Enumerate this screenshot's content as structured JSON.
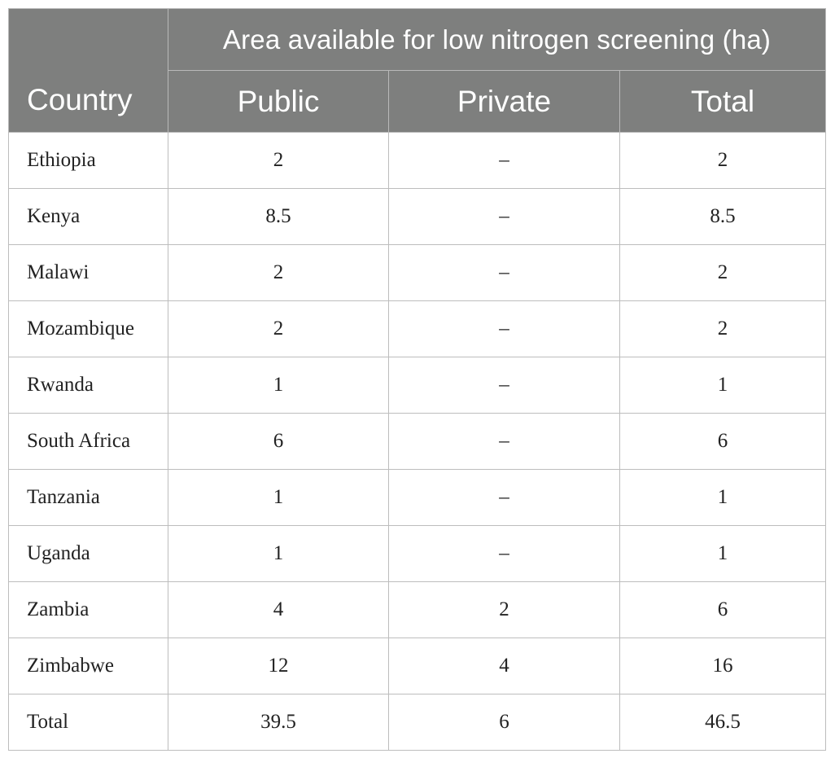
{
  "table": {
    "headers": {
      "country": "Country",
      "group": "Area available for low nitrogen screening (ha)",
      "public": "Public",
      "private": "Private",
      "total": "Total"
    },
    "rows": [
      {
        "country": "Ethiopia",
        "public": "2",
        "private": "–",
        "total": "2"
      },
      {
        "country": "Kenya",
        "public": "8.5",
        "private": "–",
        "total": "8.5"
      },
      {
        "country": "Malawi",
        "public": "2",
        "private": "–",
        "total": "2"
      },
      {
        "country": "Mozambique",
        "public": "2",
        "private": "–",
        "total": "2"
      },
      {
        "country": "Rwanda",
        "public": "1",
        "private": "–",
        "total": "1"
      },
      {
        "country": "South Africa",
        "public": "6",
        "private": "–",
        "total": "6"
      },
      {
        "country": "Tanzania",
        "public": "1",
        "private": "–",
        "total": "1"
      },
      {
        "country": "Uganda",
        "public": "1",
        "private": "–",
        "total": "1"
      },
      {
        "country": "Zambia",
        "public": "4",
        "private": "2",
        "total": "6"
      },
      {
        "country": "Zimbabwe",
        "public": "12",
        "private": "4",
        "total": "16"
      },
      {
        "country": "Total",
        "public": "39.5",
        "private": "6",
        "total": "46.5"
      }
    ]
  }
}
